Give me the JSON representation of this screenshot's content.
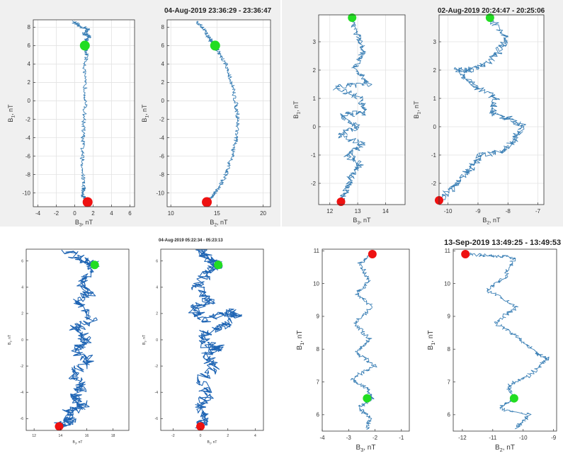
{
  "chart_data": [
    {
      "type": "line",
      "title": "04-Aug-2019 23:36:29 - 23:36:47",
      "subplots": [
        {
          "xlabel": "B3, nT",
          "ylabel": "B1, nT",
          "xlim": [
            -4.5,
            6.5
          ],
          "ylim": [
            -11.5,
            8.8
          ],
          "xticks": [
            -4,
            -2,
            0,
            2,
            4,
            6
          ],
          "yticks": [
            -10,
            -8,
            -6,
            -4,
            -2,
            0,
            2,
            4,
            6,
            8
          ],
          "grid": true,
          "jitter": 0.04,
          "path": [
            [
              -0.1,
              8.6
            ],
            [
              0.5,
              8.1
            ],
            [
              1.5,
              7.8
            ],
            [
              1.0,
              7.3
            ],
            [
              1.6,
              7.0
            ],
            [
              1.2,
              6.5
            ],
            [
              1.1,
              6.0
            ],
            [
              1.3,
              5.0
            ],
            [
              1.0,
              3.0
            ],
            [
              1.2,
              0.5
            ],
            [
              1.0,
              -2.0
            ],
            [
              0.9,
              -4.0
            ],
            [
              0.8,
              -6.0
            ],
            [
              0.9,
              -8.0
            ],
            [
              1.0,
              -9.5
            ],
            [
              0.8,
              -10.3
            ],
            [
              1.2,
              -10.7
            ],
            [
              1.4,
              -11.0
            ]
          ],
          "start": [
            1.1,
            6.0
          ],
          "end": [
            1.4,
            -11.0
          ]
        },
        {
          "xlabel": "B2, nT",
          "ylabel": "B1, nT",
          "xlim": [
            9.6,
            20.8
          ],
          "ylim": [
            -11.5,
            8.8
          ],
          "xticks": [
            10,
            15,
            20
          ],
          "yticks": [
            -10,
            -8,
            -6,
            -4,
            -2,
            0,
            2,
            4,
            6,
            8
          ],
          "grid": true,
          "jitter": 0.04,
          "path": [
            [
              12.8,
              8.6
            ],
            [
              13.6,
              7.8
            ],
            [
              14.0,
              7.0
            ],
            [
              14.4,
              6.4
            ],
            [
              14.8,
              6.0
            ],
            [
              15.3,
              5.0
            ],
            [
              15.9,
              4.0
            ],
            [
              16.6,
              2.0
            ],
            [
              17.0,
              0.0
            ],
            [
              17.3,
              -2.0
            ],
            [
              17.1,
              -4.0
            ],
            [
              16.6,
              -6.0
            ],
            [
              16.0,
              -8.0
            ],
            [
              15.2,
              -9.5
            ],
            [
              14.5,
              -10.3
            ],
            [
              13.9,
              -11.0
            ]
          ],
          "start": [
            14.8,
            6.0
          ],
          "end": [
            13.9,
            -11.0
          ]
        }
      ]
    },
    {
      "type": "line",
      "title": "02-Aug-2019 20:24:47 - 20:25:06",
      "subplots": [
        {
          "xlabel": "B3, nT",
          "ylabel": "B1, nT",
          "xlim": [
            11.6,
            14.7
          ],
          "ylim": [
            -2.75,
            3.95
          ],
          "xticks": [
            12,
            13,
            14
          ],
          "yticks": [
            -2,
            -1,
            0,
            1,
            2,
            3
          ],
          "grid": true,
          "jitter": 0.08,
          "path": [
            [
              12.8,
              3.85
            ],
            [
              13.0,
              3.2
            ],
            [
              13.2,
              2.6
            ],
            [
              12.9,
              2.1
            ],
            [
              13.4,
              1.5
            ],
            [
              12.2,
              1.4
            ],
            [
              13.1,
              1.0
            ],
            [
              13.3,
              0.5
            ],
            [
              12.4,
              0.4
            ],
            [
              13.0,
              0.0
            ],
            [
              12.3,
              -0.3
            ],
            [
              13.2,
              -0.6
            ],
            [
              12.6,
              -1.0
            ],
            [
              13.1,
              -1.3
            ],
            [
              12.8,
              -1.7
            ],
            [
              12.6,
              -2.2
            ],
            [
              12.4,
              -2.65
            ]
          ],
          "start": [
            12.8,
            3.85
          ],
          "end": [
            12.4,
            -2.65
          ]
        },
        {
          "xlabel": "B2, nT",
          "ylabel": "B1, nT",
          "xlim": [
            -10.3,
            -6.8
          ],
          "ylim": [
            -2.75,
            3.95
          ],
          "xticks": [
            -10,
            -9,
            -8,
            -7
          ],
          "yticks": [
            -2,
            -1,
            0,
            1,
            2,
            3
          ],
          "grid": true,
          "jitter": 0.08,
          "path": [
            [
              -8.6,
              3.85
            ],
            [
              -8.1,
              3.2
            ],
            [
              -8.2,
              2.8
            ],
            [
              -8.6,
              2.3
            ],
            [
              -9.3,
              2.0
            ],
            [
              -9.7,
              2.0
            ],
            [
              -9.1,
              1.4
            ],
            [
              -8.4,
              1.0
            ],
            [
              -8.5,
              0.5
            ],
            [
              -8.0,
              0.3
            ],
            [
              -7.5,
              0.0
            ],
            [
              -7.8,
              -0.5
            ],
            [
              -8.2,
              -0.9
            ],
            [
              -8.9,
              -1.0
            ],
            [
              -9.2,
              -1.4
            ],
            [
              -9.5,
              -1.8
            ],
            [
              -9.9,
              -2.2
            ],
            [
              -10.3,
              -2.6
            ]
          ],
          "start": [
            -8.6,
            3.85
          ],
          "end": [
            -10.3,
            -2.6
          ]
        }
      ]
    },
    {
      "type": "line",
      "title": "04-Aug-2019 05:22:34 - 05:23:13",
      "subplots": [
        {
          "xlabel": "B3, nT",
          "ylabel": "B1, nT",
          "xlim": [
            11.4,
            19.2
          ],
          "ylim": [
            -6.9,
            6.9
          ],
          "xticks": [
            12,
            14,
            16,
            18
          ],
          "yticks": [
            -6,
            -4,
            -2,
            0,
            2,
            4,
            6
          ],
          "grid": false,
          "jitter": 0.12,
          "path": [
            [
              14.5,
              6.8
            ],
            [
              15.8,
              6.0
            ],
            [
              16.6,
              5.7
            ],
            [
              15.5,
              4.5
            ],
            [
              16.2,
              3.6
            ],
            [
              15.2,
              2.8
            ],
            [
              16.4,
              1.4
            ],
            [
              15.0,
              0.8
            ],
            [
              16.0,
              0.0
            ],
            [
              15.2,
              -0.8
            ],
            [
              16.2,
              -1.6
            ],
            [
              15.0,
              -2.6
            ],
            [
              15.6,
              -3.6
            ],
            [
              15.1,
              -4.4
            ],
            [
              15.8,
              -5.0
            ],
            [
              14.6,
              -5.5
            ],
            [
              14.8,
              -6.2
            ],
            [
              13.9,
              -6.6
            ]
          ],
          "start": [
            16.6,
            5.7
          ],
          "end": [
            13.9,
            -6.6
          ]
        },
        {
          "xlabel": "B2, nT",
          "ylabel": "B1, nT",
          "xlim": [
            -2.9,
            4.6
          ],
          "ylim": [
            -6.9,
            6.9
          ],
          "xticks": [
            -2,
            0,
            2,
            4
          ],
          "yticks": [
            -6,
            -4,
            -2,
            0,
            2,
            4,
            6
          ],
          "grid": false,
          "jitter": 0.12,
          "path": [
            [
              0.0,
              6.8
            ],
            [
              0.6,
              6.2
            ],
            [
              1.3,
              5.7
            ],
            [
              0.4,
              5.0
            ],
            [
              -0.3,
              4.0
            ],
            [
              0.8,
              3.0
            ],
            [
              -0.6,
              2.4
            ],
            [
              0.2,
              1.5
            ],
            [
              2.0,
              2.1
            ],
            [
              2.7,
              1.9
            ],
            [
              1.8,
              1.0
            ],
            [
              0.4,
              0.6
            ],
            [
              0.2,
              -0.3
            ],
            [
              1.4,
              -0.6
            ],
            [
              0.3,
              -1.2
            ],
            [
              1.1,
              -2.0
            ],
            [
              0.0,
              -3.0
            ],
            [
              0.6,
              -4.2
            ],
            [
              0.0,
              -5.0
            ],
            [
              0.2,
              -6.0
            ],
            [
              0.0,
              -6.6
            ]
          ],
          "start": [
            1.3,
            5.7
          ],
          "end": [
            0.0,
            -6.6
          ]
        }
      ]
    },
    {
      "type": "line",
      "title": "13-Sep-2019 13:49:25 - 13:49:53",
      "subplots": [
        {
          "xlabel": "B3, nT",
          "ylabel": "B1, nT",
          "xlim": [
            -4.0,
            -0.7
          ],
          "ylim": [
            5.5,
            11.05
          ],
          "xticks": [
            -4,
            -3,
            -2,
            -1
          ],
          "yticks": [
            6,
            7,
            8,
            9,
            10,
            11
          ],
          "grid": false,
          "jitter": 0.05,
          "path": [
            [
              -2.1,
              10.9
            ],
            [
              -2.6,
              10.6
            ],
            [
              -2.2,
              10.1
            ],
            [
              -2.7,
              9.7
            ],
            [
              -2.1,
              9.3
            ],
            [
              -2.8,
              8.8
            ],
            [
              -2.2,
              8.3
            ],
            [
              -2.7,
              7.9
            ],
            [
              -2.0,
              7.5
            ],
            [
              -2.9,
              7.1
            ],
            [
              -2.3,
              6.8
            ],
            [
              -2.1,
              6.5
            ],
            [
              -2.6,
              6.2
            ],
            [
              -2.2,
              5.9
            ],
            [
              -2.3,
              5.55
            ]
          ],
          "start": [
            -2.3,
            6.5
          ],
          "end": [
            -2.1,
            10.9
          ]
        },
        {
          "xlabel": "B2, nT",
          "ylabel": "B1, nT",
          "xlim": [
            -12.3,
            -8.9
          ],
          "ylim": [
            5.5,
            11.05
          ],
          "xticks": [
            -12,
            -11,
            -10,
            -9
          ],
          "yticks": [
            6,
            7,
            8,
            9,
            10,
            11
          ],
          "grid": false,
          "jitter": 0.05,
          "path": [
            [
              -11.9,
              10.9
            ],
            [
              -11.0,
              10.85
            ],
            [
              -10.3,
              10.8
            ],
            [
              -10.6,
              10.2
            ],
            [
              -11.2,
              9.8
            ],
            [
              -10.2,
              9.3
            ],
            [
              -10.9,
              8.8
            ],
            [
              -10.2,
              8.4
            ],
            [
              -9.6,
              7.9
            ],
            [
              -9.2,
              7.7
            ],
            [
              -9.8,
              7.2
            ],
            [
              -10.5,
              6.9
            ],
            [
              -10.3,
              6.5
            ],
            [
              -10.8,
              6.2
            ],
            [
              -9.8,
              6.0
            ],
            [
              -10.2,
              5.6
            ]
          ],
          "start": [
            -10.3,
            6.5
          ],
          "end": [
            -11.9,
            10.9
          ]
        }
      ]
    }
  ]
}
